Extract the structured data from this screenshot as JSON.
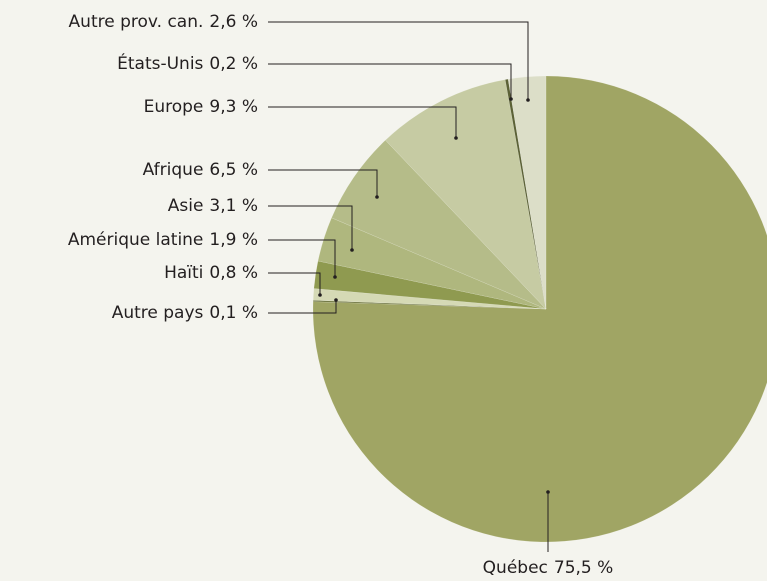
{
  "chart_data": {
    "type": "pie",
    "categories": [
      "Québec",
      "Autre pays",
      "Haïti",
      "Amérique latine",
      "Asie",
      "Afrique",
      "Europe",
      "États-Unis",
      "Autre prov. can."
    ],
    "values": [
      75.5,
      0.1,
      0.8,
      1.9,
      3.1,
      6.5,
      9.3,
      0.2,
      2.6
    ],
    "value_labels": [
      "75,5 %",
      "0,1 %",
      "0,8 %",
      "1,9 %",
      "3,1 %",
      "6,5 %",
      "9,3 %",
      "0,2 %",
      "2,6 %"
    ],
    "colors": [
      "#a0a564",
      "#6f7640",
      "#d5d9b5",
      "#8f9a50",
      "#afb77e",
      "#b5bc89",
      "#c6cba3",
      "#5c6236",
      "#dcdec8"
    ]
  }
}
